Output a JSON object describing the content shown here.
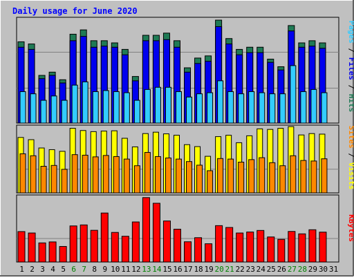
{
  "chart_data": [
    {
      "type": "bar",
      "title": "Daily usage for June 2020",
      "panel": "Pages / Files / Hits",
      "ymax_label": "48163",
      "ylim": [
        0,
        48163
      ],
      "categories": [
        "1",
        "2",
        "3",
        "4",
        "5",
        "6",
        "7",
        "8",
        "9",
        "10",
        "11",
        "12",
        "13",
        "14",
        "15",
        "16",
        "17",
        "18",
        "19",
        "20",
        "21",
        "22",
        "23",
        "24",
        "25",
        "26",
        "27",
        "28",
        "29",
        "30",
        "31"
      ],
      "series": [
        {
          "name": "Hits",
          "color": "#1f7a55",
          "values": [
            37500,
            36500,
            22000,
            23500,
            20000,
            41000,
            43000,
            38000,
            38000,
            37000,
            34000,
            21500,
            40500,
            40500,
            41500,
            38000,
            25500,
            30000,
            31000,
            47500,
            39000,
            34000,
            35000,
            35000,
            29500,
            26000,
            45000,
            37000,
            38000,
            37000,
            null
          ]
        },
        {
          "name": "Files",
          "color": "#0000ee",
          "values": [
            35000,
            34000,
            20500,
            22000,
            18500,
            38000,
            40000,
            35000,
            35500,
            35000,
            31500,
            19500,
            38000,
            38000,
            38500,
            35000,
            23500,
            27500,
            28500,
            44500,
            36500,
            31500,
            32500,
            32500,
            28000,
            24500,
            42500,
            35000,
            35500,
            34500,
            null
          ]
        },
        {
          "name": "Pages",
          "color": "#33ccff",
          "values": [
            14500,
            13500,
            10500,
            12500,
            10500,
            17500,
            19000,
            14500,
            15000,
            14500,
            14000,
            10500,
            15500,
            16500,
            16500,
            14500,
            12000,
            13500,
            14000,
            19500,
            14500,
            13500,
            14500,
            14000,
            13500,
            13500,
            26500,
            14500,
            15500,
            14000,
            null
          ]
        }
      ]
    },
    {
      "type": "bar",
      "panel": "Sites / Visits",
      "ymax_label": "2394",
      "ylim": [
        0,
        2394
      ],
      "categories": [
        "1",
        "2",
        "3",
        "4",
        "5",
        "6",
        "7",
        "8",
        "9",
        "10",
        "11",
        "12",
        "13",
        "14",
        "15",
        "16",
        "17",
        "18",
        "19",
        "20",
        "21",
        "22",
        "23",
        "24",
        "25",
        "26",
        "27",
        "28",
        "29",
        "30",
        "31"
      ],
      "series": [
        {
          "name": "Visits",
          "color": "#ffff00",
          "values": [
            2000,
            1920,
            1620,
            1560,
            1500,
            2330,
            2250,
            2210,
            2230,
            2240,
            1970,
            1660,
            2140,
            2190,
            2130,
            2080,
            1740,
            1670,
            1320,
            2030,
            2080,
            1810,
            2060,
            2310,
            2290,
            2330,
            2390,
            2090,
            2140,
            2120,
            null
          ]
        },
        {
          "name": "Sites",
          "color": "#ff8800",
          "values": [
            1410,
            1340,
            960,
            990,
            850,
            1380,
            1360,
            1300,
            1350,
            1310,
            1220,
            980,
            1460,
            1310,
            1260,
            1220,
            1130,
            1000,
            800,
            1240,
            1220,
            1110,
            1200,
            1270,
            1090,
            980,
            1340,
            1170,
            1150,
            1230,
            null
          ]
        }
      ]
    },
    {
      "type": "bar",
      "panel": "KBytes",
      "ymax_label": "4637581",
      "ylim": [
        0,
        4637581
      ],
      "categories": [
        "1",
        "2",
        "3",
        "4",
        "5",
        "6",
        "7",
        "8",
        "9",
        "10",
        "11",
        "12",
        "13",
        "14",
        "15",
        "16",
        "17",
        "18",
        "19",
        "20",
        "21",
        "22",
        "23",
        "24",
        "25",
        "26",
        "27",
        "28",
        "29",
        "30",
        "31"
      ],
      "series": [
        {
          "name": "KBytes",
          "color": "#ff0000",
          "values": [
            2150000,
            2050000,
            1350000,
            1420000,
            1100000,
            2550000,
            2620000,
            2240000,
            3460000,
            2090000,
            1820000,
            2830000,
            4550000,
            4150000,
            2900000,
            2320000,
            1430000,
            1720000,
            1290000,
            2570000,
            2440000,
            2050000,
            2120000,
            2230000,
            1770000,
            1600000,
            2160000,
            1990000,
            2280000,
            2110000,
            null
          ]
        }
      ]
    }
  ],
  "x_tick_labels": [
    {
      "label": "1",
      "weekend": false
    },
    {
      "label": "2",
      "weekend": false
    },
    {
      "label": "3",
      "weekend": false
    },
    {
      "label": "4",
      "weekend": false
    },
    {
      "label": "5",
      "weekend": false
    },
    {
      "label": "6",
      "weekend": true
    },
    {
      "label": "7",
      "weekend": true
    },
    {
      "label": "8",
      "weekend": false
    },
    {
      "label": "9",
      "weekend": false
    },
    {
      "label": "10",
      "weekend": false
    },
    {
      "label": "11",
      "weekend": false
    },
    {
      "label": "12",
      "weekend": false
    },
    {
      "label": "13",
      "weekend": true
    },
    {
      "label": "14",
      "weekend": true
    },
    {
      "label": "15",
      "weekend": false
    },
    {
      "label": "16",
      "weekend": false
    },
    {
      "label": "17",
      "weekend": false
    },
    {
      "label": "18",
      "weekend": false
    },
    {
      "label": "19",
      "weekend": false
    },
    {
      "label": "20",
      "weekend": true
    },
    {
      "label": "21",
      "weekend": true
    },
    {
      "label": "22",
      "weekend": false
    },
    {
      "label": "23",
      "weekend": false
    },
    {
      "label": "24",
      "weekend": false
    },
    {
      "label": "25",
      "weekend": false
    },
    {
      "label": "26",
      "weekend": false
    },
    {
      "label": "27",
      "weekend": true
    },
    {
      "label": "28",
      "weekend": true
    },
    {
      "label": "29",
      "weekend": false
    },
    {
      "label": "30",
      "weekend": false
    },
    {
      "label": "31",
      "weekend": false
    }
  ],
  "colors": {
    "page_bg": "#c0c0c0",
    "title_color": "#0000ff",
    "weekday_label": "#000000",
    "weekend_label": "#008000",
    "plot_bg": "#c0c0c0",
    "grid": "#808080"
  }
}
